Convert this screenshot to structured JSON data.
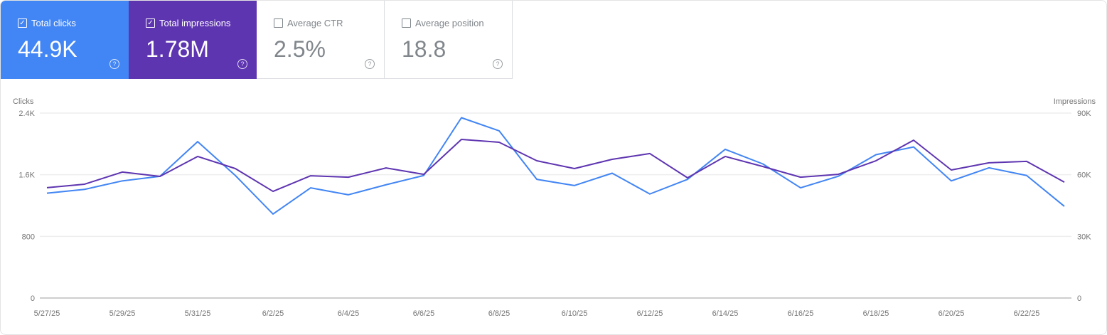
{
  "cards": [
    {
      "label": "Total clicks",
      "value": "44.9K",
      "checked": true,
      "color": "#4285f4"
    },
    {
      "label": "Total impressions",
      "value": "1.78M",
      "checked": true,
      "color": "#5e35b1"
    },
    {
      "label": "Average CTR",
      "value": "2.5%",
      "checked": false
    },
    {
      "label": "Average position",
      "value": "18.8",
      "checked": false
    }
  ],
  "help_icon": "?",
  "check_mark": "✓",
  "chart_data": {
    "type": "line",
    "left_axis_label": "Clicks",
    "right_axis_label": "Impressions",
    "left_ticks": [
      "0",
      "800",
      "1.6K",
      "2.4K"
    ],
    "right_ticks": [
      "0",
      "30K",
      "60K",
      "90K"
    ],
    "left_ylim": [
      0,
      2400
    ],
    "right_ylim": [
      0,
      90000
    ],
    "grid": true,
    "x": [
      "5/27/25",
      "5/28/25",
      "5/29/25",
      "5/30/25",
      "5/31/25",
      "6/1/25",
      "6/2/25",
      "6/3/25",
      "6/4/25",
      "6/5/25",
      "6/6/25",
      "6/7/25",
      "6/8/25",
      "6/9/25",
      "6/10/25",
      "6/11/25",
      "6/12/25",
      "6/13/25",
      "6/14/25",
      "6/15/25",
      "6/16/25",
      "6/17/25",
      "6/18/25",
      "6/19/25",
      "6/20/25",
      "6/21/25",
      "6/22/25",
      "6/23/25"
    ],
    "x_tick_labels": [
      "5/27/25",
      "5/29/25",
      "5/31/25",
      "6/2/25",
      "6/4/25",
      "6/6/25",
      "6/8/25",
      "6/10/25",
      "6/12/25",
      "6/14/25",
      "6/16/25",
      "6/18/25",
      "6/20/25",
      "6/22/25"
    ],
    "series": [
      {
        "name": "Clicks",
        "axis": "left",
        "color": "#4285f4",
        "values": [
          1360,
          1410,
          1520,
          1580,
          2030,
          1590,
          1090,
          1430,
          1340,
          1470,
          1590,
          2340,
          2170,
          1540,
          1460,
          1620,
          1350,
          1540,
          1930,
          1740,
          1430,
          1580,
          1860,
          1960,
          1520,
          1690,
          1590,
          1190
        ]
      },
      {
        "name": "Impressions",
        "axis": "right",
        "color": "#5e35b1",
        "values": [
          53700,
          55400,
          61300,
          59200,
          68900,
          63000,
          51900,
          59500,
          58800,
          63300,
          60200,
          77200,
          75800,
          66800,
          63000,
          67500,
          70300,
          58500,
          68900,
          64000,
          58800,
          60200,
          66800,
          76800,
          62300,
          65800,
          66500,
          56400
        ]
      }
    ]
  }
}
